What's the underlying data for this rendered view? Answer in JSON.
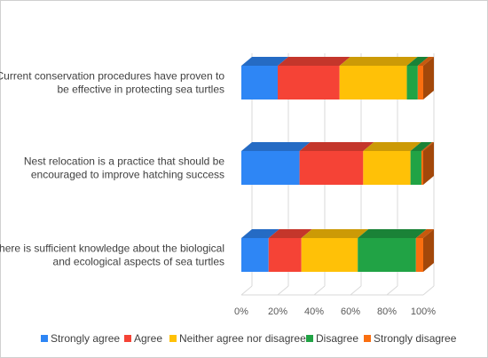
{
  "chart_data": {
    "type": "bar",
    "orientation": "horizontal",
    "stacked": "100%",
    "style": "3d",
    "categories": [
      [
        "Current conservation procedures have proven to",
        "be effective in protecting sea turtles"
      ],
      [
        "Nest relocation is a practice that should be",
        "encouraged to improve hatching success"
      ],
      [
        "There is sufficient knowledge about the biological",
        "and ecological aspects of sea turtles"
      ]
    ],
    "series": [
      {
        "name": "Strongly agree",
        "color": "#2e86f5",
        "values": [
          20,
          32,
          15
        ]
      },
      {
        "name": "Agree",
        "color": "#f54336",
        "values": [
          34,
          35,
          18
        ]
      },
      {
        "name": "Neither agree nor disagree",
        "color": "#ffc107",
        "values": [
          37,
          26,
          31
        ]
      },
      {
        "name": "Disagree",
        "color": "#21a345",
        "values": [
          6,
          6,
          32
        ]
      },
      {
        "name": "Strongly disagree",
        "color": "#fa6f10",
        "values": [
          3,
          1,
          4
        ]
      }
    ],
    "xticks": [
      "0%",
      "20%",
      "40%",
      "60%",
      "80%",
      "100%"
    ],
    "xlim": [
      0,
      100
    ],
    "legend": "bottom",
    "grid": true
  }
}
